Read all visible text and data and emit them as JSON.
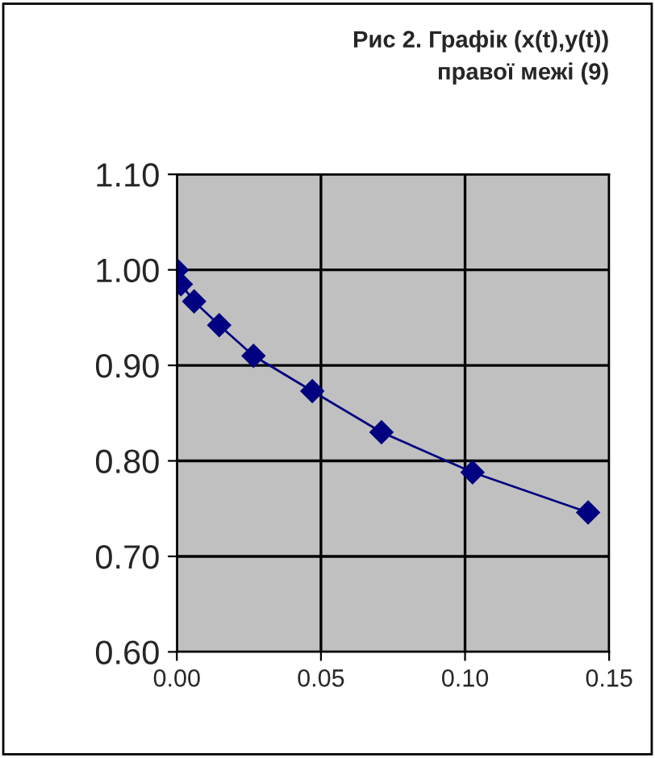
{
  "chart_data": {
    "type": "line",
    "title": "Рис 2. Графік (x(t),y(t))\nправої межі (9)",
    "x": [
      0,
      0.0014,
      0.006,
      0.0147,
      0.0266,
      0.047,
      0.071,
      0.1026,
      0.1427
    ],
    "values": [
      1.0,
      0.985,
      0.967,
      0.942,
      0.91,
      0.873,
      0.83,
      0.788,
      0.746
    ],
    "color": "#000080",
    "marker": "diamond",
    "line_style": "solid",
    "grid": true,
    "xlim": [
      0,
      0.15
    ],
    "xticks": [
      {
        "value": 0,
        "label": "0.00"
      },
      {
        "value": 0.05,
        "label": "0.05"
      },
      {
        "value": 0.1,
        "label": "0.10"
      },
      {
        "value": 0.15,
        "label": "0.15"
      }
    ],
    "ylim": [
      0.6,
      1.1
    ],
    "yticks": [
      {
        "value": 0.6,
        "label": "0.60"
      },
      {
        "value": 0.7,
        "label": "0.70"
      },
      {
        "value": 0.8,
        "label": "0.80"
      },
      {
        "value": 0.9,
        "label": "0.90"
      },
      {
        "value": 1.0,
        "label": "1.00"
      },
      {
        "value": 1.1,
        "label": "1.10"
      }
    ]
  }
}
